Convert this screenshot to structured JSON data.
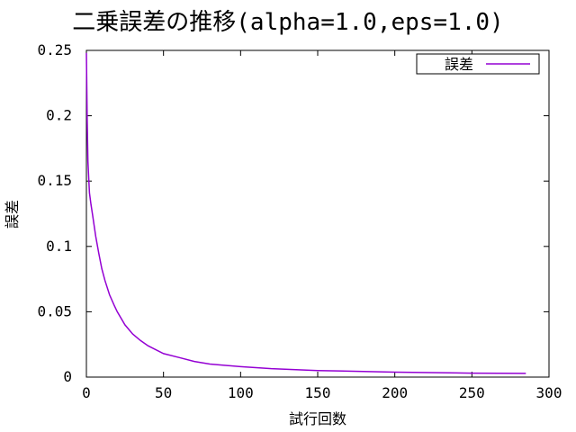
{
  "chart_data": {
    "type": "line",
    "title": "二乗誤差の推移(alpha=1.0,eps=1.0)",
    "xlabel": "試行回数",
    "ylabel": "誤差",
    "xlim": [
      0,
      300
    ],
    "ylim": [
      0,
      0.25
    ],
    "xticks": [
      "0",
      "50",
      "100",
      "150",
      "200",
      "250",
      "300"
    ],
    "yticks": [
      "0",
      "0.05",
      "0.1",
      "0.15",
      "0.2",
      "0.25"
    ],
    "grid": false,
    "legend_position": "top-right",
    "series": [
      {
        "name": "誤差",
        "color": "#9400d3",
        "x": [
          0,
          0.5,
          1,
          1.5,
          2,
          3,
          4,
          5,
          6,
          8,
          10,
          12,
          15,
          18,
          20,
          25,
          30,
          35,
          40,
          50,
          60,
          70,
          80,
          100,
          120,
          150,
          200,
          250,
          285
        ],
        "y": [
          0.248,
          0.196,
          0.165,
          0.152,
          0.141,
          0.132,
          0.124,
          0.116,
          0.108,
          0.095,
          0.083,
          0.074,
          0.063,
          0.055,
          0.05,
          0.04,
          0.033,
          0.028,
          0.024,
          0.018,
          0.015,
          0.012,
          0.01,
          0.008,
          0.0065,
          0.005,
          0.0038,
          0.003,
          0.0028
        ]
      }
    ]
  }
}
